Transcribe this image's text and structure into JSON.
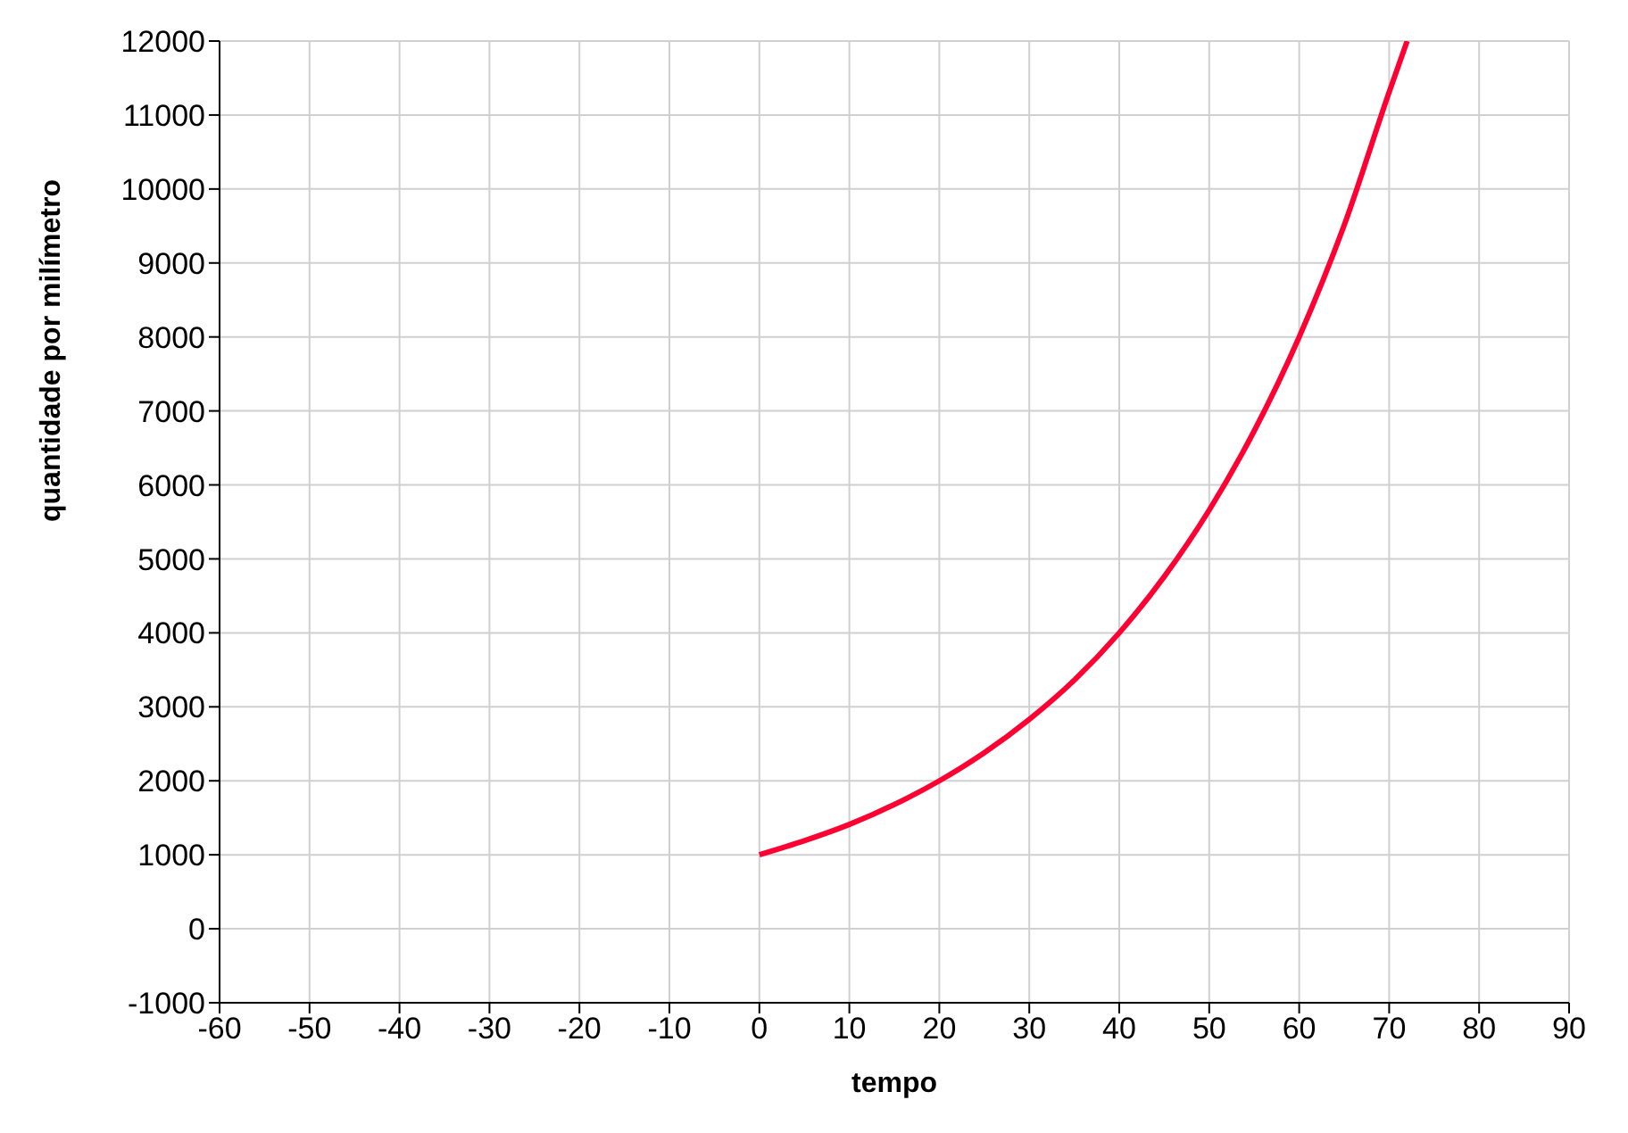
{
  "chart_data": {
    "type": "line",
    "xlabel": "tempo",
    "ylabel": "quantidade por milímetro",
    "x": [
      0,
      5,
      10,
      15,
      20,
      25,
      30,
      35,
      40,
      45,
      50,
      55,
      60,
      65,
      70,
      72
    ],
    "series": [
      {
        "color": "#ff0033",
        "values": [
          1000,
          1190,
          1410,
          1680,
          2000,
          2380,
          2830,
          3360,
          4000,
          4760,
          5660,
          6730,
          8000,
          9510,
          11310,
          12000
        ]
      }
    ],
    "xlim": [
      -60,
      90
    ],
    "xticks": [
      -60,
      -50,
      -40,
      -30,
      -20,
      -10,
      0,
      10,
      20,
      30,
      40,
      50,
      60,
      70,
      80,
      90
    ],
    "ylim": [
      -1000,
      12000
    ],
    "yticks": [
      -1000,
      0,
      1000,
      2000,
      3000,
      4000,
      5000,
      6000,
      7000,
      8000,
      9000,
      10000,
      11000,
      12000
    ],
    "grid": true,
    "marker": "none",
    "line_style": "solid",
    "legend": false
  }
}
